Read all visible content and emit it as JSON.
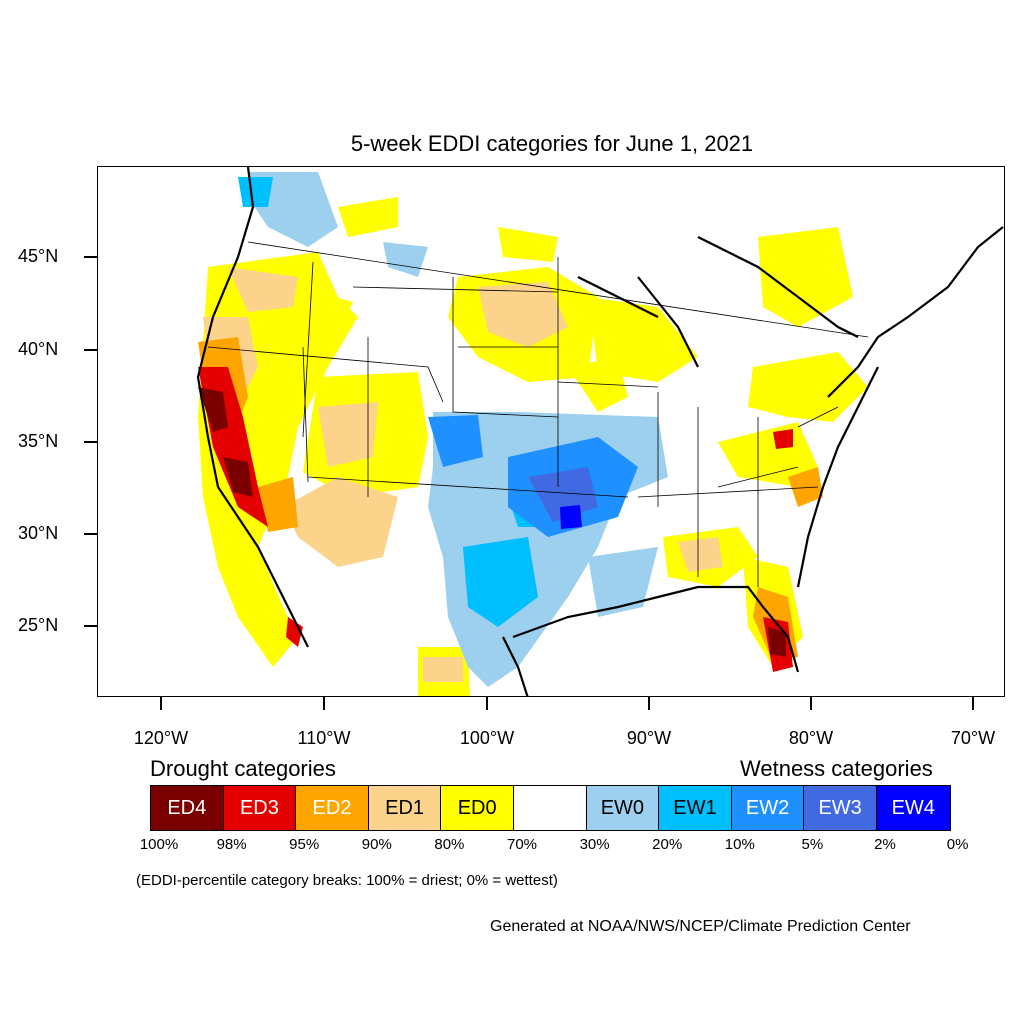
{
  "title": "5-week EDDI categories for June 1, 2021",
  "lat_labels": [
    "45°N",
    "40°N",
    "35°N",
    "30°N",
    "25°N"
  ],
  "lon_labels": [
    "120°W",
    "110°W",
    "100°W",
    "90°W",
    "80°W",
    "70°W"
  ],
  "legend": {
    "drought_heading": "Drought categories",
    "wetness_heading": "Wetness categories",
    "categories": [
      {
        "label": "ED4",
        "color": "#7a0000",
        "text_color": "#ffffff"
      },
      {
        "label": "ED3",
        "color": "#e50000",
        "text_color": "#ffffff"
      },
      {
        "label": "ED2",
        "color": "#ffa500",
        "text_color": "#ffffff"
      },
      {
        "label": "ED1",
        "color": "#fcd38a",
        "text_color": "#000000"
      },
      {
        "label": "ED0",
        "color": "#ffff00",
        "text_color": "#000000"
      },
      {
        "label": "",
        "color": "#ffffff",
        "text_color": "#000000"
      },
      {
        "label": "EW0",
        "color": "#9dd0ee",
        "text_color": "#000000"
      },
      {
        "label": "EW1",
        "color": "#00bfff",
        "text_color": "#000000"
      },
      {
        "label": "EW2",
        "color": "#1e90ff",
        "text_color": "#ffffff"
      },
      {
        "label": "EW3",
        "color": "#4169e1",
        "text_color": "#ffffff"
      },
      {
        "label": "EW4",
        "color": "#0000ff",
        "text_color": "#ffffff"
      }
    ],
    "percentiles": [
      "100%",
      "98%",
      "95%",
      "90%",
      "80%",
      "70%",
      "30%",
      "20%",
      "10%",
      "5%",
      "2%",
      "0%"
    ]
  },
  "note": "(EDDI-percentile category breaks: 100% = driest; 0% = wettest)",
  "credit": "Generated at NOAA/NWS/NCEP/Climate Prediction Center"
}
